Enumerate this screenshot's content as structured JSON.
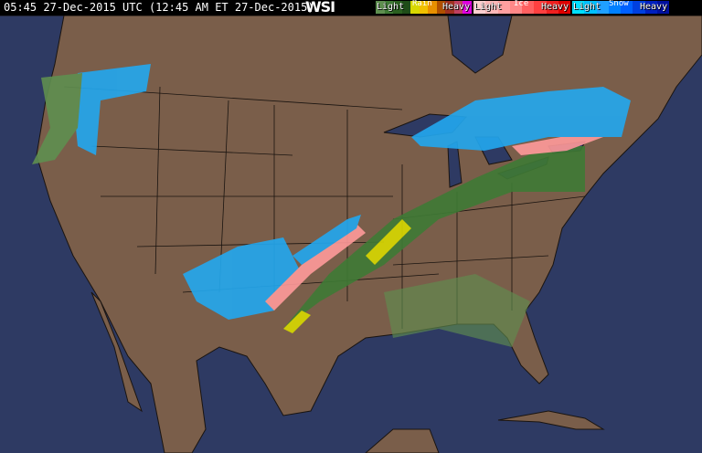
{
  "header": {
    "timestamp": "05:45 27-Dec-2015 UTC (12:45 AM ET 27-Dec-2015)",
    "logo": "WSI"
  },
  "legend": {
    "rain": {
      "title": "Rain",
      "light": "Light",
      "heavy": "Heavy",
      "colors": [
        "#5f8f50",
        "#3f7a35",
        "#2a6020",
        "#1f4d18",
        "#d8d800",
        "#f0c000",
        "#e89000",
        "#b05000",
        "#a03020",
        "#c04060",
        "#e000e0"
      ]
    },
    "ice": {
      "title": "Ice",
      "light": "Light",
      "heavy": "Heavy",
      "colors": [
        "#ffd0d0",
        "#ffb8b8",
        "#ffa0a0",
        "#ff8888",
        "#ff6060",
        "#ff4040",
        "#f02020",
        "#e00000"
      ]
    },
    "snow": {
      "title": "Snow",
      "light": "Light",
      "heavy": "Heavy",
      "colors": [
        "#00e0ff",
        "#00c0ff",
        "#20a0ff",
        "#0080ff",
        "#0060ff",
        "#0040e0",
        "#0020c0",
        "#0010a0"
      ]
    }
  },
  "colors": {
    "land": "#7a5e4a",
    "water": "#2e3a63",
    "borders": "#1a1410"
  }
}
